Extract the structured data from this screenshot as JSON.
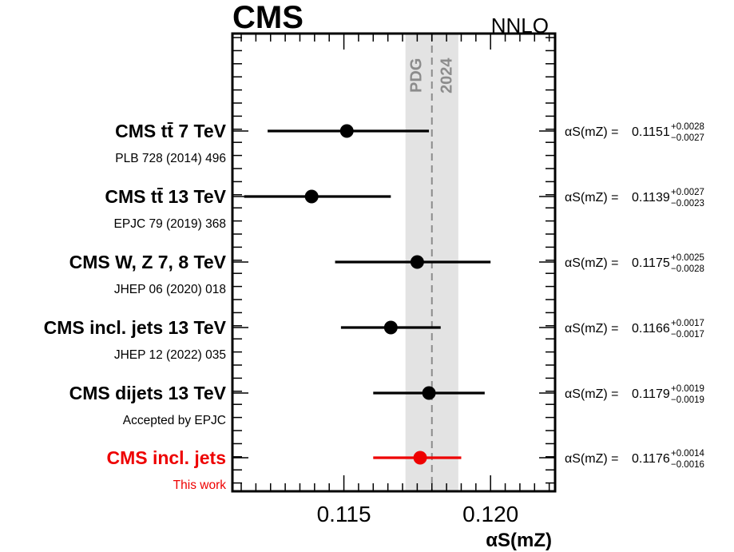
{
  "header": {
    "experiment": "CMS",
    "order": "NNLO"
  },
  "chart_data": {
    "type": "scatter",
    "xlabel": "αS(mZ)",
    "xlim": [
      0.1112,
      0.1222
    ],
    "x_ticks": [
      "0.115",
      "0.120"
    ],
    "x_tick_values": [
      0.115,
      0.12
    ],
    "band": {
      "labels": [
        "PDG",
        "2024"
      ],
      "center": 0.118,
      "low": 0.1171,
      "high": 0.1189
    },
    "colors": {
      "measurement": "#000000",
      "this_work": "#ee0000",
      "band_fill": "#e3e3e3",
      "band_line": "#8c8c8c"
    },
    "measurements": [
      {
        "label": "CMS tt̄ 7 TeV",
        "reference": "PLB 728 (2014) 496",
        "value": 0.1151,
        "up": 0.0028,
        "down": 0.0027,
        "value_text": "0.1151",
        "up_text": "+0.0028",
        "down_text": "−0.0027",
        "highlight": false
      },
      {
        "label": "CMS tt̄ 13 TeV",
        "reference": "EPJC 79 (2019) 368",
        "value": 0.1139,
        "up": 0.0027,
        "down": 0.0023,
        "value_text": "0.1139",
        "up_text": "+0.0027",
        "down_text": "−0.0023",
        "highlight": false
      },
      {
        "label": "CMS W, Z 7, 8 TeV",
        "reference": "JHEP 06 (2020) 018",
        "value": 0.1175,
        "up": 0.0025,
        "down": 0.0028,
        "value_text": "0.1175",
        "up_text": "+0.0025",
        "down_text": "−0.0028",
        "highlight": false
      },
      {
        "label": "CMS incl. jets 13 TeV",
        "reference": "JHEP 12 (2022) 035",
        "value": 0.1166,
        "up": 0.0017,
        "down": 0.0017,
        "value_text": "0.1166",
        "up_text": "+0.0017",
        "down_text": "−0.0017",
        "highlight": false
      },
      {
        "label": "CMS dijets 13 TeV",
        "reference": "Accepted by EPJC",
        "value": 0.1179,
        "up": 0.0019,
        "down": 0.0019,
        "value_text": "0.1179",
        "up_text": "+0.0019",
        "down_text": "−0.0019",
        "highlight": false
      },
      {
        "label": "CMS incl. jets",
        "reference": "This work",
        "value": 0.1176,
        "up": 0.0014,
        "down": 0.0016,
        "value_text": "0.1176",
        "up_text": "+0.0014",
        "down_text": "−0.0016",
        "highlight": true
      }
    ]
  }
}
